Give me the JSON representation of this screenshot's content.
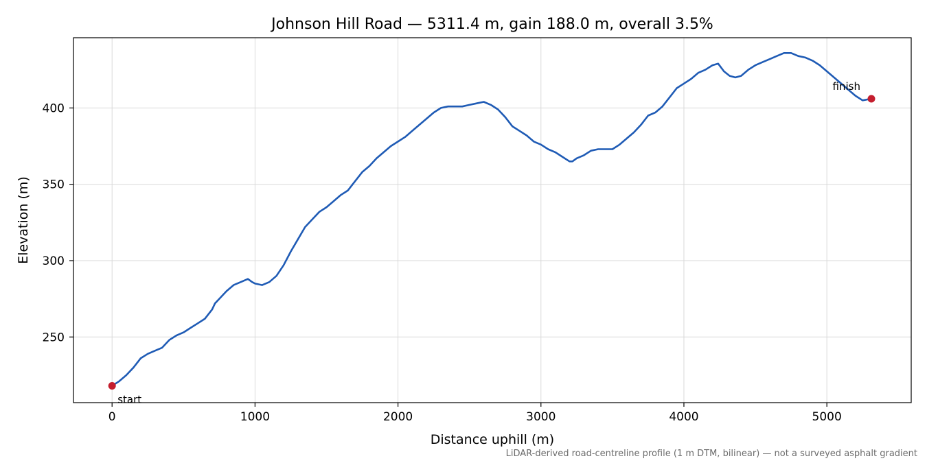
{
  "chart_data": {
    "type": "line",
    "title": "Johnson Hill Road — 5311.4 m, gain 188.0 m, overall 3.5%",
    "xlabel": "Distance uphill (m)",
    "ylabel": "Elevation (m)",
    "xlim": [
      -270,
      5590
    ],
    "ylim": [
      207,
      446
    ],
    "xticks": [
      0,
      1000,
      2000,
      3000,
      4000,
      5000
    ],
    "yticks": [
      250,
      300,
      350,
      400
    ],
    "grid": true,
    "line_color": "#1f5bb5",
    "marker_color": "#c41e2e",
    "series": [
      {
        "x": [
          0,
          50,
          100,
          150,
          200,
          250,
          300,
          350,
          400,
          450,
          500,
          550,
          600,
          650,
          700,
          720,
          750,
          800,
          850,
          900,
          950,
          980,
          1000,
          1050,
          1100,
          1150,
          1200,
          1250,
          1300,
          1350,
          1400,
          1450,
          1500,
          1550,
          1600,
          1650,
          1700,
          1750,
          1800,
          1850,
          1900,
          1950,
          2000,
          2050,
          2100,
          2150,
          2200,
          2250,
          2300,
          2350,
          2400,
          2450,
          2500,
          2550,
          2600,
          2650,
          2700,
          2750,
          2800,
          2850,
          2900,
          2950,
          3000,
          3050,
          3100,
          3150,
          3200,
          3220,
          3250,
          3300,
          3350,
          3400,
          3450,
          3500,
          3550,
          3600,
          3650,
          3700,
          3750,
          3800,
          3850,
          3900,
          3950,
          4000,
          4050,
          4100,
          4150,
          4200,
          4240,
          4280,
          4320,
          4360,
          4400,
          4450,
          4500,
          4550,
          4600,
          4650,
          4700,
          4750,
          4800,
          4850,
          4900,
          4950,
          5000,
          5050,
          5100,
          5150,
          5200,
          5250,
          5311
        ],
        "y": [
          218,
          221,
          225,
          230,
          236,
          239,
          241,
          243,
          248,
          251,
          253,
          256,
          259,
          262,
          268,
          272,
          275,
          280,
          284,
          286,
          288,
          286,
          285,
          284,
          286,
          290,
          297,
          306,
          314,
          322,
          327,
          332,
          335,
          339,
          343,
          346,
          352,
          358,
          362,
          367,
          371,
          375,
          378,
          381,
          385,
          389,
          393,
          397,
          400,
          401,
          401,
          401,
          402,
          403,
          404,
          402,
          399,
          394,
          388,
          385,
          382,
          378,
          376,
          373,
          371,
          368,
          365,
          365,
          367,
          369,
          372,
          373,
          373,
          373,
          376,
          380,
          384,
          389,
          395,
          397,
          401,
          407,
          413,
          416,
          419,
          423,
          425,
          428,
          429,
          424,
          421,
          420,
          421,
          425,
          428,
          430,
          432,
          434,
          436,
          436,
          434,
          433,
          431,
          428,
          424,
          420,
          416,
          412,
          408,
          405,
          406
        ]
      }
    ],
    "annotations": [
      {
        "text": "start",
        "x": 0,
        "y": 218
      },
      {
        "text": "finish",
        "x": 5311.4,
        "y": 406
      }
    ],
    "caption": "LiDAR-derived road-centreline profile (1 m DTM, bilinear) — not a surveyed asphalt gradient"
  }
}
